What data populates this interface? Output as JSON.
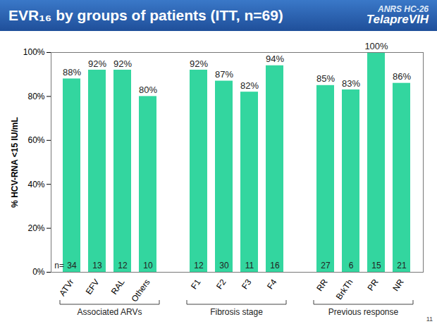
{
  "chart_data": {
    "type": "bar",
    "title": "EVR₁₆ by groups of patients (ITT, n=69)",
    "y_label": "% HCV-RNA <15 IU/mL",
    "categories": [
      "ATVr",
      "EFV",
      "RAL",
      "Others",
      "F1",
      "F2",
      "F3",
      "F4",
      "RR",
      "BrkTh",
      "PR",
      "NR"
    ],
    "groups": [
      "Associated ARVs",
      "Associated ARVs",
      "Associated ARVs",
      "Associated ARVs",
      "Fibrosis stage",
      "Fibrosis stage",
      "Fibrosis stage",
      "Fibrosis stage",
      "Previous response",
      "Previous response",
      "Previous response",
      "Previous response"
    ],
    "values": [
      88,
      92,
      92,
      80,
      92,
      87,
      82,
      94,
      85,
      83,
      100,
      86
    ],
    "value_labels": [
      "88%",
      "92%",
      "92%",
      "80%",
      "92%",
      "87%",
      "82%",
      "94%",
      "85%",
      "83%",
      "100%",
      "86%"
    ],
    "n_prefix": "n=",
    "n": [
      34,
      13,
      12,
      10,
      12,
      30,
      11,
      16,
      27,
      6,
      15,
      21
    ],
    "color": "#33d69f",
    "ylim": [
      0,
      100
    ],
    "yticks": [
      {
        "value": 0,
        "label": "0%"
      },
      {
        "value": 20,
        "label": "20%"
      },
      {
        "value": 40,
        "label": "40%"
      },
      {
        "value": 60,
        "label": "60%"
      },
      {
        "value": 80,
        "label": "80%"
      },
      {
        "value": 100,
        "label": "100%"
      }
    ],
    "grid": false,
    "data_labels": true
  },
  "slide": {
    "banner": [
      "ANRS HC-26",
      "TelapreVIH"
    ],
    "page_number": "11"
  }
}
